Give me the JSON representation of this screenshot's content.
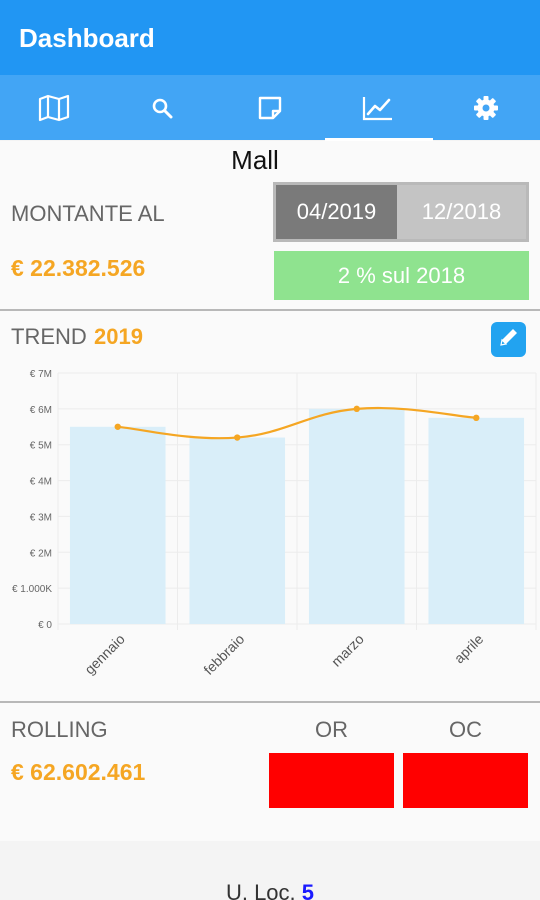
{
  "appbar": {
    "title": "Dashboard"
  },
  "tabs": [
    {
      "icon": "map-icon"
    },
    {
      "icon": "search-icon"
    },
    {
      "icon": "note-icon"
    },
    {
      "icon": "trend-chart-icon",
      "selected": true
    },
    {
      "icon": "gear-icon"
    }
  ],
  "page_title": "Mall",
  "montante": {
    "label": "MONTANTE AL",
    "value": "€ 22.382.526",
    "date_selected": "04/2019",
    "date_other": "12/2018",
    "comparison": "2 % sul 2018"
  },
  "trend": {
    "label": "TREND",
    "year": "2019",
    "edit_icon": "pencil-icon"
  },
  "chart_data": {
    "type": "bar",
    "categories": [
      "gennaio",
      "febbraio",
      "marzo",
      "aprile"
    ],
    "series": [
      {
        "type": "bar",
        "values": [
          5.5,
          5.2,
          6.0,
          5.75
        ]
      },
      {
        "type": "line",
        "values": [
          5.5,
          5.2,
          6.0,
          5.75
        ]
      }
    ],
    "y_tick_labels": [
      "€ 0",
      "€ 1.000K",
      "€ 2M",
      "€ 3M",
      "€ 4M",
      "€ 5M",
      "€ 6M",
      "€ 7M"
    ],
    "ylim": [
      0,
      7
    ],
    "grid": true,
    "bar_color": "#d9eef9",
    "line_color": "#f5a623"
  },
  "rolling": {
    "label": "ROLLING",
    "value": "€ 62.602.461",
    "or_label": "OR",
    "oc_label": "OC",
    "or_color": "#ff0000",
    "oc_color": "#ff0000"
  },
  "footer": {
    "label": "U. Loc.",
    "value": "5"
  },
  "colors": {
    "appbar": "#2196f3",
    "tabbar": "#42a5f5",
    "accent_orange": "#f5a623",
    "comparison_green": "#8fe38f"
  }
}
